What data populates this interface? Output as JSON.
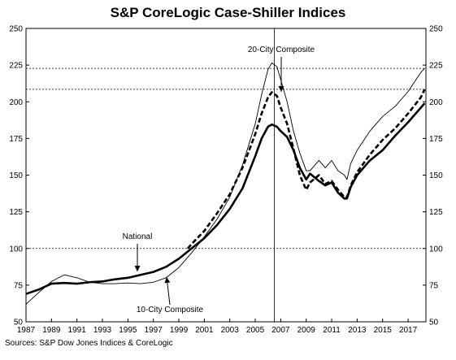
{
  "chart_data": {
    "type": "line",
    "title": "S&P CoreLogic Case-Shiller Indices",
    "source": "Sources: S&P Dow Jones Indices & CoreLogic",
    "xlabel": "",
    "ylabel": "",
    "xlim": [
      1987,
      2018.4
    ],
    "ylim": [
      50,
      250
    ],
    "x_ticks": [
      "1987",
      "1989",
      "1991",
      "1993",
      "1995",
      "1997",
      "1999",
      "2001",
      "2003",
      "2005",
      "2007",
      "2009",
      "2011",
      "2013",
      "2015",
      "2017"
    ],
    "y_ticks": [
      50,
      75,
      100,
      125,
      150,
      175,
      200,
      225,
      250
    ],
    "grid": false,
    "legend": "none (series labeled by annotations)",
    "reference_lines": [
      {
        "y": 222.8,
        "style": "dotted"
      },
      {
        "y": 208.5,
        "style": "dotted"
      },
      {
        "y": 100,
        "style": "dotted"
      }
    ],
    "vertical_line": {
      "x": 2006.5
    },
    "annotations": [
      {
        "text": "20-City Composite",
        "series": "20-City Composite"
      },
      {
        "text": "National",
        "series": "National"
      },
      {
        "text": "10-City Composite",
        "series": "10-City Composite"
      }
    ],
    "series": [
      {
        "name": "10-City Composite",
        "style": "thin solid",
        "points": [
          [
            1987.0,
            62.0
          ],
          [
            1988.0,
            70.0
          ],
          [
            1989.0,
            77.5
          ],
          [
            1990.0,
            82.0
          ],
          [
            1991.0,
            80.0
          ],
          [
            1992.0,
            77.0
          ],
          [
            1993.0,
            76.0
          ],
          [
            1994.0,
            76.0
          ],
          [
            1995.0,
            76.5
          ],
          [
            1996.0,
            76.0
          ],
          [
            1997.0,
            77.0
          ],
          [
            1998.0,
            80.0
          ],
          [
            1999.0,
            87.0
          ],
          [
            2000.0,
            97.0
          ],
          [
            2001.0,
            108.0
          ],
          [
            2002.0,
            120.0
          ],
          [
            2003.0,
            135.0
          ],
          [
            2004.0,
            157.0
          ],
          [
            2005.0,
            185.0
          ],
          [
            2005.5,
            205.0
          ],
          [
            2006.0,
            222.0
          ],
          [
            2006.3,
            226.5
          ],
          [
            2006.7,
            224.0
          ],
          [
            2007.0,
            215.0
          ],
          [
            2007.5,
            200.0
          ],
          [
            2008.0,
            180.0
          ],
          [
            2008.5,
            165.0
          ],
          [
            2009.0,
            153.0
          ],
          [
            2009.3,
            153.0
          ],
          [
            2010.0,
            160.0
          ],
          [
            2010.5,
            155.0
          ],
          [
            2011.0,
            160.0
          ],
          [
            2011.5,
            153.0
          ],
          [
            2012.0,
            150.0
          ],
          [
            2012.2,
            147.0
          ],
          [
            2012.5,
            158.0
          ],
          [
            2013.0,
            167.0
          ],
          [
            2014.0,
            180.0
          ],
          [
            2015.0,
            190.0
          ],
          [
            2016.0,
            197.0
          ],
          [
            2017.0,
            207.0
          ],
          [
            2018.0,
            220.0
          ],
          [
            2018.3,
            222.8
          ]
        ]
      },
      {
        "name": "20-City Composite",
        "style": "thick dashed",
        "points": [
          [
            1999.7,
            100.0
          ],
          [
            2000.0,
            103.0
          ],
          [
            2001.0,
            112.0
          ],
          [
            2002.0,
            124.0
          ],
          [
            2003.0,
            137.0
          ],
          [
            2004.0,
            155.0
          ],
          [
            2005.0,
            178.0
          ],
          [
            2005.5,
            192.0
          ],
          [
            2006.0,
            203.0
          ],
          [
            2006.3,
            206.5
          ],
          [
            2006.7,
            204.0
          ],
          [
            2007.0,
            196.0
          ],
          [
            2007.5,
            185.0
          ],
          [
            2008.0,
            168.0
          ],
          [
            2008.5,
            150.0
          ],
          [
            2009.0,
            140.0
          ],
          [
            2009.3,
            145.0
          ],
          [
            2010.0,
            150.0
          ],
          [
            2010.5,
            144.0
          ],
          [
            2011.0,
            146.0
          ],
          [
            2011.5,
            140.0
          ],
          [
            2012.0,
            135.0
          ],
          [
            2012.2,
            135.0
          ],
          [
            2012.5,
            143.0
          ],
          [
            2013.0,
            152.0
          ],
          [
            2014.0,
            164.0
          ],
          [
            2015.0,
            174.0
          ],
          [
            2016.0,
            182.0
          ],
          [
            2017.0,
            192.0
          ],
          [
            2018.0,
            203.0
          ],
          [
            2018.3,
            208.5
          ]
        ]
      },
      {
        "name": "National",
        "style": "thick solid",
        "points": [
          [
            1987.0,
            69.0
          ],
          [
            1988.0,
            72.0
          ],
          [
            1989.0,
            76.0
          ],
          [
            1990.0,
            76.5
          ],
          [
            1991.0,
            76.0
          ],
          [
            1992.0,
            77.0
          ],
          [
            1993.0,
            77.5
          ],
          [
            1994.0,
            79.0
          ],
          [
            1995.0,
            80.0
          ],
          [
            1996.0,
            82.0
          ],
          [
            1997.0,
            84.0
          ],
          [
            1998.0,
            87.5
          ],
          [
            1999.0,
            93.0
          ],
          [
            2000.0,
            100.0
          ],
          [
            2001.0,
            107.0
          ],
          [
            2002.0,
            116.0
          ],
          [
            2003.0,
            127.0
          ],
          [
            2004.0,
            141.0
          ],
          [
            2005.0,
            163.0
          ],
          [
            2005.5,
            175.0
          ],
          [
            2006.0,
            183.0
          ],
          [
            2006.3,
            184.5
          ],
          [
            2006.7,
            183.0
          ],
          [
            2007.0,
            180.0
          ],
          [
            2007.5,
            176.0
          ],
          [
            2008.0,
            167.0
          ],
          [
            2008.5,
            155.0
          ],
          [
            2009.0,
            147.0
          ],
          [
            2009.3,
            151.0
          ],
          [
            2010.0,
            146.0
          ],
          [
            2010.5,
            143.0
          ],
          [
            2011.0,
            145.0
          ],
          [
            2011.5,
            138.0
          ],
          [
            2012.0,
            134.0
          ],
          [
            2012.2,
            134.0
          ],
          [
            2012.5,
            142.0
          ],
          [
            2013.0,
            150.0
          ],
          [
            2014.0,
            160.0
          ],
          [
            2015.0,
            167.0
          ],
          [
            2016.0,
            177.0
          ],
          [
            2017.0,
            186.0
          ],
          [
            2018.0,
            196.0
          ],
          [
            2018.3,
            199.0
          ]
        ]
      }
    ]
  }
}
